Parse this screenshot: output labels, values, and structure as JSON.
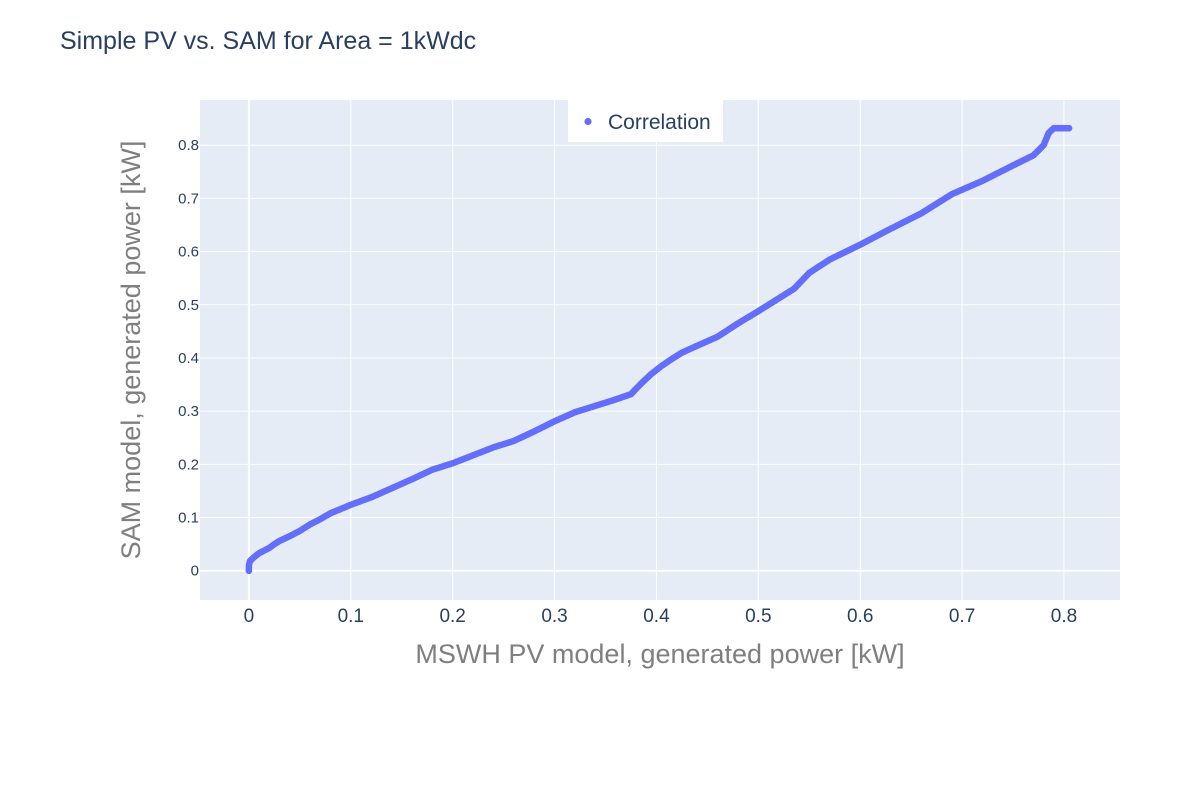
{
  "chart_data": {
    "type": "scatter",
    "title": "Simple PV vs. SAM for Area = 1kWdc",
    "xlabel": "MSWH PV model, generated power [kW]",
    "ylabel": "SAM model, generated power [kW]",
    "xlim": [
      -0.048,
      0.855
    ],
    "ylim": [
      -0.055,
      0.885
    ],
    "xticks": [
      0,
      0.1,
      0.2,
      0.3,
      0.4,
      0.5,
      0.6,
      0.7,
      0.8
    ],
    "yticks": [
      0,
      0.1,
      0.2,
      0.3,
      0.4,
      0.5,
      0.6,
      0.7,
      0.8
    ],
    "grid": true,
    "legend_position": "top-center",
    "plot_bg": "#e5ecf6",
    "marker_color": "#636efa",
    "series": [
      {
        "name": "Correlation",
        "points": [
          [
            0,
            0
          ],
          [
            0,
            0.01
          ],
          [
            0.001,
            0.018
          ],
          [
            0.003,
            0.022
          ],
          [
            0.006,
            0.027
          ],
          [
            0.01,
            0.033
          ],
          [
            0.015,
            0.038
          ],
          [
            0.02,
            0.043
          ],
          [
            0.025,
            0.05
          ],
          [
            0.03,
            0.056
          ],
          [
            0.04,
            0.065
          ],
          [
            0.05,
            0.075
          ],
          [
            0.06,
            0.087
          ],
          [
            0.07,
            0.097
          ],
          [
            0.08,
            0.108
          ],
          [
            0.09,
            0.116
          ],
          [
            0.1,
            0.124
          ],
          [
            0.12,
            0.138
          ],
          [
            0.14,
            0.155
          ],
          [
            0.16,
            0.172
          ],
          [
            0.18,
            0.19
          ],
          [
            0.2,
            0.202
          ],
          [
            0.22,
            0.217
          ],
          [
            0.24,
            0.232
          ],
          [
            0.26,
            0.244
          ],
          [
            0.28,
            0.262
          ],
          [
            0.3,
            0.281
          ],
          [
            0.32,
            0.298
          ],
          [
            0.34,
            0.31
          ],
          [
            0.36,
            0.322
          ],
          [
            0.375,
            0.332
          ],
          [
            0.385,
            0.352
          ],
          [
            0.395,
            0.37
          ],
          [
            0.405,
            0.385
          ],
          [
            0.415,
            0.398
          ],
          [
            0.425,
            0.41
          ],
          [
            0.44,
            0.423
          ],
          [
            0.46,
            0.44
          ],
          [
            0.48,
            0.465
          ],
          [
            0.5,
            0.488
          ],
          [
            0.52,
            0.512
          ],
          [
            0.535,
            0.53
          ],
          [
            0.55,
            0.56
          ],
          [
            0.57,
            0.585
          ],
          [
            0.6,
            0.613
          ],
          [
            0.63,
            0.643
          ],
          [
            0.66,
            0.672
          ],
          [
            0.69,
            0.708
          ],
          [
            0.72,
            0.733
          ],
          [
            0.75,
            0.762
          ],
          [
            0.77,
            0.781
          ],
          [
            0.78,
            0.8
          ],
          [
            0.785,
            0.823
          ],
          [
            0.79,
            0.832
          ],
          [
            0.795,
            0.832
          ],
          [
            0.8,
            0.832
          ],
          [
            0.805,
            0.832
          ]
        ]
      }
    ]
  }
}
